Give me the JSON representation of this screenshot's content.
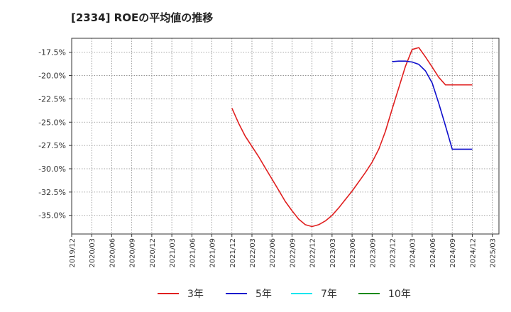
{
  "chart_data": {
    "type": "line",
    "title": "[2334]  ROEの平均値の推移",
    "xlabel": "",
    "ylabel": "",
    "ylim": [
      -37.0,
      -16.0
    ],
    "yticks": [
      -17.5,
      -20.0,
      -22.5,
      -25.0,
      -27.5,
      -30.0,
      -32.5,
      -35.0
    ],
    "ytick_labels": [
      "-17.5%",
      "-20.0%",
      "-22.5%",
      "-25.0%",
      "-27.5%",
      "-30.0%",
      "-32.5%",
      "-35.0%"
    ],
    "xlim": [
      2019.917,
      2025.25
    ],
    "xticks": [
      2019.917,
      2020.167,
      2020.417,
      2020.667,
      2020.917,
      2021.167,
      2021.417,
      2021.667,
      2021.917,
      2022.167,
      2022.417,
      2022.667,
      2022.917,
      2023.167,
      2023.417,
      2023.667,
      2023.917,
      2024.167,
      2024.417,
      2024.667,
      2024.917,
      2025.167
    ],
    "xtick_labels": [
      "2019/12",
      "2020/03",
      "2020/06",
      "2020/09",
      "2020/12",
      "2021/03",
      "2021/06",
      "2021/09",
      "2021/12",
      "2022/03",
      "2022/06",
      "2022/09",
      "2022/12",
      "2023/03",
      "2023/06",
      "2023/09",
      "2023/12",
      "2024/03",
      "2024/06",
      "2024/09",
      "2024/12",
      "2025/03"
    ],
    "grid": true,
    "legend_position": "bottom",
    "series": [
      {
        "name": "3年",
        "color": "#e02020",
        "x": [
          2021.917,
          2022.0,
          2022.083,
          2022.167,
          2022.25,
          2022.333,
          2022.417,
          2022.5,
          2022.583,
          2022.667,
          2022.75,
          2022.833,
          2022.917,
          2023.0,
          2023.083,
          2023.167,
          2023.25,
          2023.333,
          2023.417,
          2023.5,
          2023.583,
          2023.667,
          2023.75,
          2023.833,
          2023.917,
          2024.0,
          2024.083,
          2024.167,
          2024.25,
          2024.333,
          2024.417,
          2024.5,
          2024.583,
          2024.667,
          2024.75,
          2024.833,
          2024.917
        ],
        "values": [
          -23.5,
          -25.1,
          -26.5,
          -27.6,
          -28.7,
          -29.9,
          -31.1,
          -32.3,
          -33.5,
          -34.5,
          -35.4,
          -36.0,
          -36.2,
          -36.0,
          -35.6,
          -35.0,
          -34.2,
          -33.3,
          -32.4,
          -31.4,
          -30.4,
          -29.3,
          -27.9,
          -26.0,
          -23.6,
          -21.3,
          -19.0,
          -17.2,
          -17.0,
          -18.0,
          -19.1,
          -20.2,
          -21.0,
          -21.0,
          -21.0,
          -21.0,
          -21.0
        ]
      },
      {
        "name": "5年",
        "color": "#1010cc",
        "x": [
          2023.917,
          2024.0,
          2024.083,
          2024.167,
          2024.25,
          2024.333,
          2024.417,
          2024.5,
          2024.583,
          2024.667,
          2024.75,
          2024.833,
          2024.917
        ],
        "values": [
          -18.5,
          -18.45,
          -18.45,
          -18.55,
          -18.8,
          -19.5,
          -20.8,
          -23.0,
          -25.4,
          -27.9,
          -27.9,
          -27.9,
          -27.9
        ]
      },
      {
        "name": "7年",
        "color": "#00e5ee",
        "x": [],
        "values": []
      },
      {
        "name": "10年",
        "color": "#1a8a1a",
        "x": [],
        "values": []
      }
    ]
  }
}
